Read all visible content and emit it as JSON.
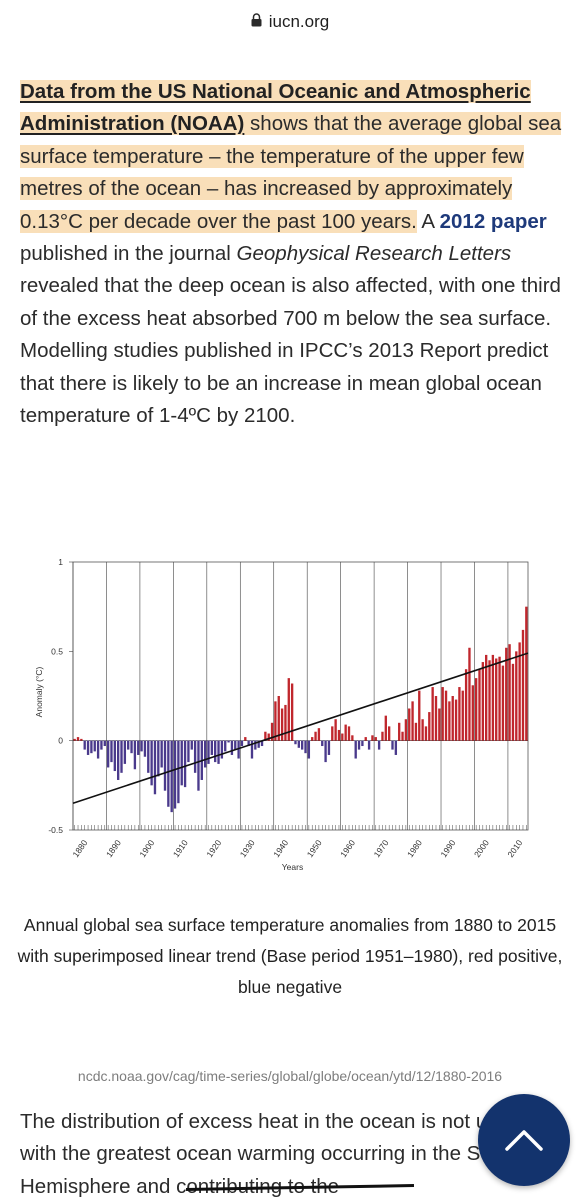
{
  "browser": {
    "domain": "iucn.org"
  },
  "article": {
    "noaa_link": "Data from the US National Oceanic and Atmospheric Administration (NOAA)",
    "highlight_text": " shows that the average global sea surface temperature – the temperature of the upper few metres of the ocean – has increased by approximately 0.13°C per decade over the past 100 years.",
    "text_a": " A ",
    "paper_link": "2012 paper",
    "text_b": " published in the journal ",
    "journal": "Geophysical Research Letters",
    "text_c": " revealed that the deep ocean is also affected, with one third of the excess heat absorbed 700 m below the sea surface. Modelling studies published in IPCC’s 2013 Report predict that there is likely to be an increase in mean global ocean temperature of 1-4ºC by 2100."
  },
  "chart_data": {
    "type": "bar",
    "title": "",
    "xlabel": "Years",
    "ylabel": "Anomaly (°C)",
    "xlim": [
      1880,
      2015
    ],
    "ylim": [
      -0.5,
      1
    ],
    "x_ticks": [
      "1880",
      "1890",
      "1900",
      "1910",
      "1920",
      "1930",
      "1940",
      "1950",
      "1960",
      "1970",
      "1980",
      "1990",
      "2000",
      "2010"
    ],
    "y_ticks": [
      "1",
      "0.5",
      "0",
      "-0.5"
    ],
    "positive_color": "#c0272d",
    "negative_color": "#4a3a8c",
    "trend_line": {
      "start": [
        1880,
        -0.35
      ],
      "end": [
        2015,
        0.49
      ]
    },
    "x": [
      1880,
      1881,
      1882,
      1883,
      1884,
      1885,
      1886,
      1887,
      1888,
      1889,
      1890,
      1891,
      1892,
      1893,
      1894,
      1895,
      1896,
      1897,
      1898,
      1899,
      1900,
      1901,
      1902,
      1903,
      1904,
      1905,
      1906,
      1907,
      1908,
      1909,
      1910,
      1911,
      1912,
      1913,
      1914,
      1915,
      1916,
      1917,
      1918,
      1919,
      1920,
      1921,
      1922,
      1923,
      1924,
      1925,
      1926,
      1927,
      1928,
      1929,
      1930,
      1931,
      1932,
      1933,
      1934,
      1935,
      1936,
      1937,
      1938,
      1939,
      1940,
      1941,
      1942,
      1943,
      1944,
      1945,
      1946,
      1947,
      1948,
      1949,
      1950,
      1951,
      1952,
      1953,
      1954,
      1955,
      1956,
      1957,
      1958,
      1959,
      1960,
      1961,
      1962,
      1963,
      1964,
      1965,
      1966,
      1967,
      1968,
      1969,
      1970,
      1971,
      1972,
      1973,
      1974,
      1975,
      1976,
      1977,
      1978,
      1979,
      1980,
      1981,
      1982,
      1983,
      1984,
      1985,
      1986,
      1987,
      1988,
      1989,
      1990,
      1991,
      1992,
      1993,
      1994,
      1995,
      1996,
      1997,
      1998,
      1999,
      2000,
      2001,
      2002,
      2003,
      2004,
      2005,
      2006,
      2007,
      2008,
      2009,
      2010,
      2011,
      2012,
      2013,
      2014,
      2015
    ],
    "values": [
      0.01,
      0.02,
      0.01,
      -0.05,
      -0.08,
      -0.07,
      -0.06,
      -0.1,
      -0.05,
      -0.03,
      -0.15,
      -0.12,
      -0.17,
      -0.22,
      -0.18,
      -0.13,
      -0.05,
      -0.07,
      -0.16,
      -0.08,
      -0.06,
      -0.09,
      -0.18,
      -0.25,
      -0.3,
      -0.2,
      -0.15,
      -0.28,
      -0.37,
      -0.4,
      -0.38,
      -0.35,
      -0.25,
      -0.26,
      -0.12,
      -0.05,
      -0.18,
      -0.28,
      -0.22,
      -0.15,
      -0.13,
      -0.08,
      -0.12,
      -0.13,
      -0.1,
      -0.06,
      -0.01,
      -0.08,
      -0.05,
      -0.1,
      -0.03,
      0.02,
      -0.03,
      -0.1,
      -0.05,
      -0.04,
      -0.03,
      0.05,
      0.04,
      0.1,
      0.22,
      0.25,
      0.18,
      0.2,
      0.35,
      0.32,
      -0.02,
      -0.04,
      -0.05,
      -0.07,
      -0.1,
      0.02,
      0.05,
      0.07,
      -0.03,
      -0.12,
      -0.08,
      0.08,
      0.12,
      0.06,
      0.04,
      0.09,
      0.08,
      0.03,
      -0.1,
      -0.05,
      -0.03,
      0.02,
      -0.05,
      0.03,
      0.02,
      -0.05,
      0.05,
      0.14,
      0.08,
      -0.05,
      -0.08,
      0.1,
      0.05,
      0.12,
      0.18,
      0.22,
      0.1,
      0.28,
      0.12,
      0.08,
      0.16,
      0.3,
      0.25,
      0.18,
      0.3,
      0.28,
      0.22,
      0.25,
      0.23,
      0.3,
      0.28,
      0.4,
      0.52,
      0.31,
      0.35,
      0.4,
      0.44,
      0.48,
      0.45,
      0.48,
      0.46,
      0.47,
      0.42,
      0.52,
      0.54,
      0.43,
      0.5,
      0.55,
      0.62,
      0.75
    ]
  },
  "figure_caption": "Annual global sea surface temperature anomalies from 1880 to 2015 with superimposed linear trend (Base period 1951–1980), red positive, blue negative",
  "source": "ncdc.noaa.gov/cag/time-series/global/globe/ocean/ytd/12/1880-2016",
  "article2": {
    "text": "The distribution of excess heat in the ocean is not uniform, with the greatest ocean warming occurring in the Southern Hemisphere and contributing to the"
  }
}
